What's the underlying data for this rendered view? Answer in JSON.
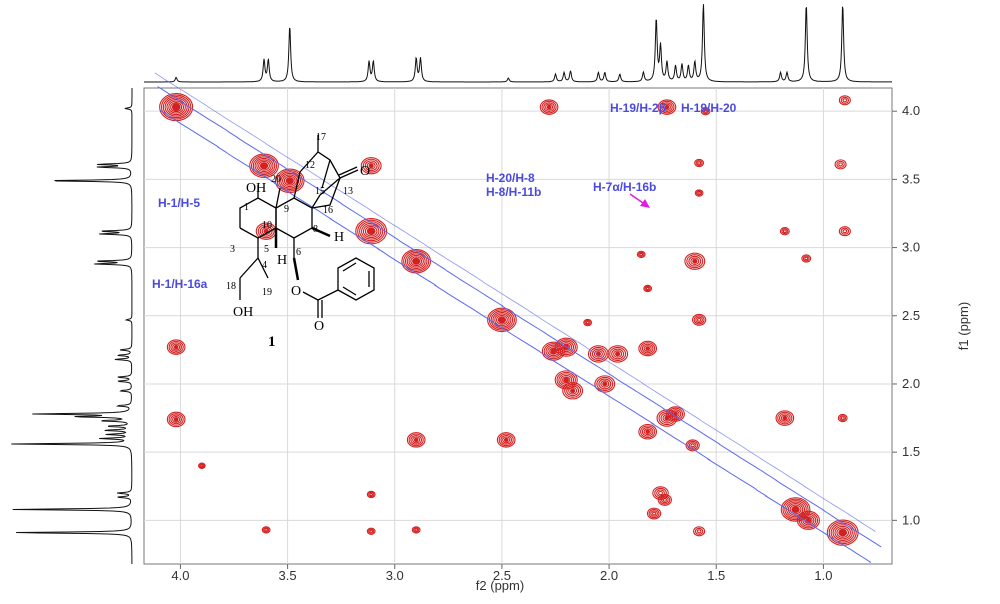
{
  "chart_data": {
    "type": "scatter",
    "subtype": "2D NMR contour map (COSY/ROESY style) with 1D 1H projections",
    "xlabel": "f2 (ppm)",
    "ylabel": "f1 (ppm)",
    "xlim": [
      4.17,
      0.68
    ],
    "ylim": [
      4.17,
      0.68
    ],
    "x_ticks": [
      "4.0",
      "3.5",
      "3.0",
      "2.5",
      "2.0",
      "1.5",
      "1.0"
    ],
    "y_ticks": [
      "1.0",
      "1.5",
      "2.0",
      "2.5",
      "3.0",
      "3.5",
      "4.0"
    ],
    "grid": true,
    "colors": {
      "positive": "#d42020",
      "negative": "#5a6af0",
      "annotation": "#4a4ae0",
      "arrow": "#e020e0",
      "trace": "#111111"
    },
    "annotations": [
      {
        "text": "H-1/H-5",
        "x": 4.0,
        "y": 1.72
      },
      {
        "text": "H-1/H-16a",
        "x": 4.0,
        "y": 2.27
      },
      {
        "text": "H-20/H-8",
        "x": 2.48,
        "y": 1.59
      },
      {
        "text": "H-8/H-11b",
        "x": 2.48,
        "y": 1.59
      },
      {
        "text": "H-19/H-2β",
        "x": 1.82,
        "y": 0.92
      },
      {
        "text": "H-19/H-20",
        "x": 1.55,
        "y": 0.92
      },
      {
        "text": "H-7α/H-16b",
        "x": 1.77,
        "y": 1.61
      }
    ],
    "diagonal_peaks": [
      {
        "x": 4.02,
        "y": 4.03,
        "s": 1.5
      },
      {
        "x": 3.61,
        "y": 3.6,
        "s": 1.3
      },
      {
        "x": 3.49,
        "y": 3.49,
        "s": 1.3
      },
      {
        "x": 3.11,
        "y": 3.12,
        "s": 1.4
      },
      {
        "x": 2.9,
        "y": 2.9,
        "s": 1.3
      },
      {
        "x": 2.5,
        "y": 2.47,
        "s": 1.3
      },
      {
        "x": 2.26,
        "y": 2.24,
        "s": 1.0
      },
      {
        "x": 2.2,
        "y": 2.27,
        "s": 1.0
      },
      {
        "x": 2.05,
        "y": 2.22,
        "s": 0.9
      },
      {
        "x": 2.2,
        "y": 2.03,
        "s": 1.0
      },
      {
        "x": 2.17,
        "y": 1.95,
        "s": 0.9
      },
      {
        "x": 2.02,
        "y": 2.0,
        "s": 0.9
      },
      {
        "x": 1.96,
        "y": 2.22,
        "s": 0.9
      },
      {
        "x": 1.82,
        "y": 1.65,
        "s": 0.8
      },
      {
        "x": 1.73,
        "y": 1.75,
        "s": 0.9
      },
      {
        "x": 1.76,
        "y": 1.2,
        "s": 0.7
      },
      {
        "x": 1.69,
        "y": 1.78,
        "s": 0.8
      },
      {
        "x": 1.61,
        "y": 1.55,
        "s": 0.6
      },
      {
        "x": 1.13,
        "y": 1.08,
        "s": 1.3
      },
      {
        "x": 1.07,
        "y": 1.0,
        "s": 1.0
      },
      {
        "x": 0.91,
        "y": 0.91,
        "s": 1.4
      }
    ],
    "cross_peaks": [
      {
        "x": 4.02,
        "y": 1.74,
        "s": 0.8
      },
      {
        "x": 4.02,
        "y": 2.27,
        "s": 0.8
      },
      {
        "x": 3.6,
        "y": 3.12,
        "s": 0.9
      },
      {
        "x": 3.11,
        "y": 3.6,
        "s": 0.9
      },
      {
        "x": 2.48,
        "y": 1.59,
        "s": 0.8
      },
      {
        "x": 2.9,
        "y": 1.59,
        "s": 0.8
      },
      {
        "x": 2.28,
        "y": 4.03,
        "s": 0.8
      },
      {
        "x": 1.73,
        "y": 4.03,
        "s": 0.8
      },
      {
        "x": 1.58,
        "y": 2.47,
        "s": 0.6
      },
      {
        "x": 1.6,
        "y": 2.9,
        "s": 0.9
      },
      {
        "x": 1.82,
        "y": 2.26,
        "s": 0.8
      },
      {
        "x": 1.18,
        "y": 1.75,
        "s": 0.8
      },
      {
        "x": 1.79,
        "y": 1.05,
        "s": 0.6
      },
      {
        "x": 1.74,
        "y": 1.15,
        "s": 0.6
      },
      {
        "x": 1.58,
        "y": 0.92,
        "s": 0.5
      },
      {
        "x": 0.91,
        "y": 1.75,
        "s": 0.4
      },
      {
        "x": 0.92,
        "y": 3.61,
        "s": 0.5
      },
      {
        "x": 0.9,
        "y": 3.12,
        "s": 0.5
      },
      {
        "x": 0.9,
        "y": 4.08,
        "s": 0.5
      },
      {
        "x": 1.18,
        "y": 3.12,
        "s": 0.4
      },
      {
        "x": 1.58,
        "y": 3.62,
        "s": 0.4
      },
      {
        "x": 1.08,
        "y": 2.92,
        "s": 0.4
      },
      {
        "x": 3.6,
        "y": 0.93,
        "s": 0.35
      },
      {
        "x": 3.11,
        "y": 0.92,
        "s": 0.35
      },
      {
        "x": 3.11,
        "y": 1.19,
        "s": 0.35
      },
      {
        "x": 2.9,
        "y": 0.93,
        "s": 0.35
      },
      {
        "x": 2.1,
        "y": 2.45,
        "s": 0.35
      },
      {
        "x": 1.55,
        "y": 4.0,
        "s": 0.4
      },
      {
        "x": 1.82,
        "y": 2.7,
        "s": 0.35
      },
      {
        "x": 1.85,
        "y": 2.95,
        "s": 0.35
      },
      {
        "x": 1.58,
        "y": 3.4,
        "s": 0.35
      },
      {
        "x": 3.9,
        "y": 1.4,
        "s": 0.3
      }
    ],
    "proton_spectrum_peaks": [
      {
        "ppm": 4.02,
        "h": 0.06
      },
      {
        "ppm": 3.61,
        "h": 0.28
      },
      {
        "ppm": 3.59,
        "h": 0.28
      },
      {
        "ppm": 3.49,
        "h": 0.72
      },
      {
        "ppm": 3.12,
        "h": 0.26
      },
      {
        "ppm": 3.1,
        "h": 0.26
      },
      {
        "ppm": 2.9,
        "h": 0.3
      },
      {
        "ppm": 2.88,
        "h": 0.3
      },
      {
        "ppm": 2.47,
        "h": 0.05
      },
      {
        "ppm": 2.25,
        "h": 0.1
      },
      {
        "ppm": 2.21,
        "h": 0.12
      },
      {
        "ppm": 2.18,
        "h": 0.14
      },
      {
        "ppm": 2.05,
        "h": 0.12
      },
      {
        "ppm": 2.02,
        "h": 0.12
      },
      {
        "ppm": 1.95,
        "h": 0.1
      },
      {
        "ppm": 1.84,
        "h": 0.12
      },
      {
        "ppm": 1.78,
        "h": 0.8
      },
      {
        "ppm": 1.76,
        "h": 0.45
      },
      {
        "ppm": 1.73,
        "h": 0.25
      },
      {
        "ppm": 1.69,
        "h": 0.2
      },
      {
        "ppm": 1.66,
        "h": 0.22
      },
      {
        "ppm": 1.63,
        "h": 0.2
      },
      {
        "ppm": 1.6,
        "h": 0.25
      },
      {
        "ppm": 1.56,
        "h": 1.0
      },
      {
        "ppm": 1.2,
        "h": 0.12
      },
      {
        "ppm": 1.17,
        "h": 0.12
      },
      {
        "ppm": 1.08,
        "h": 1.0
      },
      {
        "ppm": 0.91,
        "h": 1.0
      }
    ]
  },
  "structure": {
    "compound_label": "1",
    "atoms": [
      "OH",
      "20",
      "1",
      "10",
      "9",
      "17",
      "12",
      "13",
      "O",
      "15",
      "16",
      "8",
      "H",
      "3",
      "5",
      "6",
      "4",
      "H",
      "18",
      "19",
      "OH",
      "O",
      "O"
    ]
  }
}
